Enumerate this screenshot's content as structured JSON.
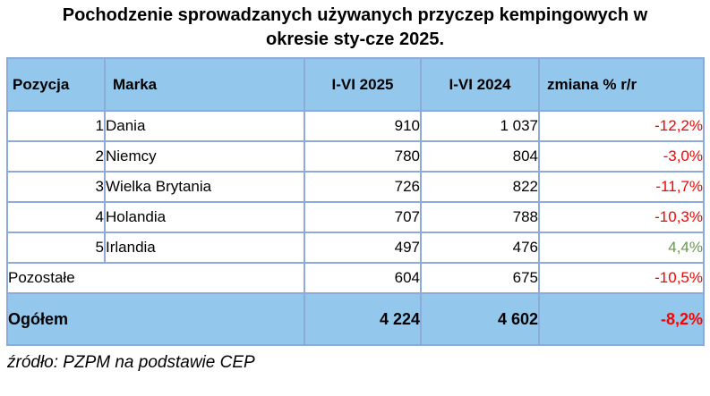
{
  "title": "Pochodzenie sprowadzanych używanych przyczep kempingowych w okresie sty-cze 2025.",
  "table": {
    "headers": [
      "Pozycja",
      "Marka",
      "I-VI 2025",
      "I-VI 2024",
      "zmiana % r/r"
    ],
    "rows": [
      {
        "pos": "1",
        "marka": "Dania",
        "v2025": "910",
        "v2024": "1 037",
        "change": "-12,2%",
        "trend": "negative"
      },
      {
        "pos": "2",
        "marka": "Niemcy",
        "v2025": "780",
        "v2024": "804",
        "change": "-3,0%",
        "trend": "negative"
      },
      {
        "pos": "3",
        "marka": "Wielka Brytania",
        "v2025": "726",
        "v2024": "822",
        "change": "-11,7%",
        "trend": "negative"
      },
      {
        "pos": "4",
        "marka": "Holandia",
        "v2025": "707",
        "v2024": "788",
        "change": "-10,3%",
        "trend": "negative"
      },
      {
        "pos": "5",
        "marka": "Irlandia",
        "v2025": "497",
        "v2024": "476",
        "change": "4,4%",
        "trend": "positive"
      },
      {
        "pos": "",
        "marka": "Pozostałe",
        "v2025": "604",
        "v2024": "675",
        "change": "-10,5%",
        "trend": "negative"
      }
    ],
    "total": {
      "label": "Ogółem",
      "v2025": "4 224",
      "v2024": "4 602",
      "change": "-8,2%",
      "trend": "negative"
    }
  },
  "footer": "źródło: PZPM na podstawie CEP",
  "colors": {
    "header_bg": "#93C8EC",
    "border": "#8EAADB",
    "negative": "#FF0000",
    "positive": "#6B9550"
  },
  "chart_data": {
    "type": "table",
    "title": "Pochodzenie sprowadzanych używanych przyczep kempingowych w okresie sty-cze 2025.",
    "columns": [
      "Pozycja",
      "Marka",
      "I-VI 2025",
      "I-VI 2024",
      "zmiana % r/r"
    ],
    "rows": [
      [
        1,
        "Dania",
        910,
        1037,
        -12.2
      ],
      [
        2,
        "Niemcy",
        780,
        804,
        -3.0
      ],
      [
        3,
        "Wielka Brytania",
        726,
        822,
        -11.7
      ],
      [
        4,
        "Holandia",
        707,
        788,
        -10.3
      ],
      [
        5,
        "Irlandia",
        497,
        476,
        4.4
      ],
      [
        null,
        "Pozostałe",
        604,
        675,
        -10.5
      ]
    ],
    "total": [
      "Ogółem",
      4224,
      4602,
      -8.2
    ],
    "source": "źródło: PZPM na podstawie CEP"
  }
}
